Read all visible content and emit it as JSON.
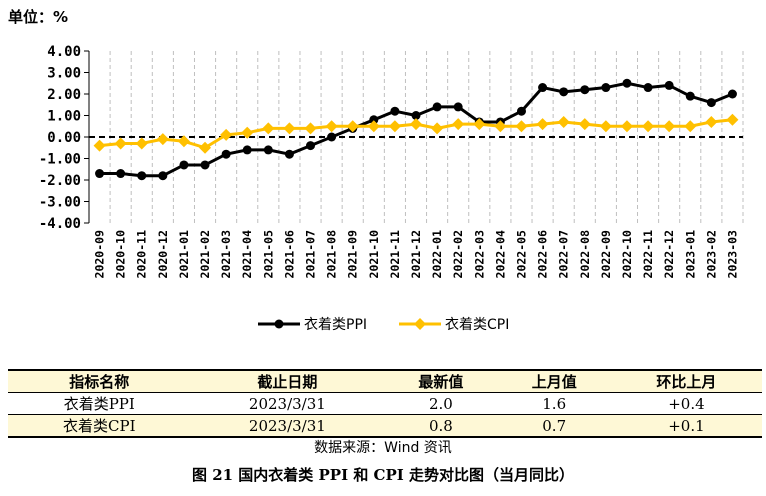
{
  "unit_label": "单位：%",
  "chart_data": {
    "type": "line",
    "categories": [
      "2020-09",
      "2020-10",
      "2020-11",
      "2020-12",
      "2021-01",
      "2021-02",
      "2021-03",
      "2021-04",
      "2021-05",
      "2021-06",
      "2021-07",
      "2021-08",
      "2021-09",
      "2021-10",
      "2021-11",
      "2021-12",
      "2022-01",
      "2022-02",
      "2022-03",
      "2022-04",
      "2022-05",
      "2022-06",
      "2022-07",
      "2022-08",
      "2022-09",
      "2022-10",
      "2022-11",
      "2022-12",
      "2023-01",
      "2023-02",
      "2023-03"
    ],
    "series": [
      {
        "name": "衣着类PPI",
        "color": "#000000",
        "values": [
          -1.7,
          -1.7,
          -1.8,
          -1.8,
          -1.3,
          -1.3,
          -0.8,
          -0.6,
          -0.6,
          -0.8,
          -0.4,
          0.0,
          0.4,
          0.8,
          1.2,
          1.0,
          1.4,
          1.4,
          0.7,
          0.7,
          1.2,
          2.3,
          2.1,
          2.2,
          2.3,
          2.5,
          2.3,
          2.4,
          1.9,
          1.6,
          2.0
        ]
      },
      {
        "name": "衣着类CPI",
        "color": "#ffc000",
        "values": [
          -0.4,
          -0.3,
          -0.3,
          -0.1,
          -0.2,
          -0.5,
          0.1,
          0.2,
          0.4,
          0.4,
          0.4,
          0.5,
          0.5,
          0.5,
          0.5,
          0.6,
          0.4,
          0.6,
          0.6,
          0.5,
          0.5,
          0.6,
          0.7,
          0.6,
          0.5,
          0.5,
          0.5,
          0.5,
          0.5,
          0.7,
          0.8
        ]
      }
    ],
    "y_ticks": [
      "4.00",
      "3.00",
      "2.00",
      "1.00",
      "0.00",
      "-1.00",
      "-2.00",
      "-3.00",
      "-4.00"
    ],
    "ylim": [
      -4,
      4
    ],
    "grid": "vertical dashed",
    "legend_position": "bottom",
    "zero_line": "dashed"
  },
  "table": {
    "headers": [
      "指标名称",
      "截止日期",
      "最新值",
      "上月值",
      "环比上月"
    ],
    "rows": [
      [
        "衣着类PPI",
        "2023/3/31",
        "2.0",
        "1.6",
        "+0.4"
      ],
      [
        "衣着类CPI",
        "2023/3/31",
        "0.8",
        "0.7",
        "+0.1"
      ]
    ]
  },
  "source": "数据来源：Wind 资讯",
  "caption": "图 21   国内衣着类 PPI 和 CPI 走势对比图（当月同比）"
}
